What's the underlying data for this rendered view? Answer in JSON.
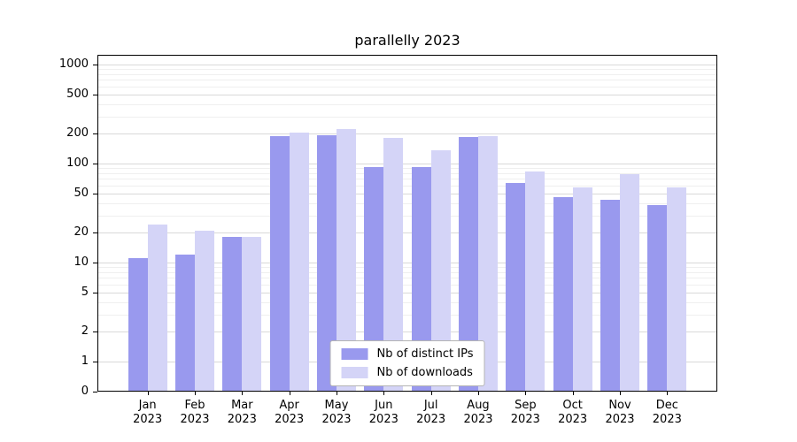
{
  "title": "parallelly 2023",
  "colors": {
    "ips": "#9999ee",
    "downloads": "#d4d4f7",
    "grid_major": "#d9d9d9",
    "grid_minor": "#efefef",
    "axis": "#000000",
    "background": "#ffffff"
  },
  "chart_data": {
    "type": "bar",
    "title": "parallelly 2023",
    "categories": [
      "Jan 2023",
      "Feb 2023",
      "Mar 2023",
      "Apr 2023",
      "May 2023",
      "Jun 2023",
      "Jul 2023",
      "Aug 2023",
      "Sep 2023",
      "Oct 2023",
      "Nov 2023",
      "Dec 2023"
    ],
    "series": [
      {
        "name": "Nb of distinct IPs",
        "color": "#9999ee",
        "values": [
          11,
          12,
          18,
          190,
          195,
          92,
          93,
          185,
          63,
          46,
          43,
          38
        ]
      },
      {
        "name": "Nb of downloads",
        "color": "#d4d4f7",
        "values": [
          24,
          21,
          18,
          205,
          225,
          180,
          135,
          190,
          83,
          57,
          78,
          58
        ]
      }
    ],
    "yscale": "symlog",
    "yticks": [
      0,
      1,
      2,
      5,
      10,
      20,
      50,
      100,
      200,
      500,
      1000
    ],
    "yminor": [
      3,
      4,
      6,
      7,
      8,
      9,
      30,
      40,
      60,
      70,
      80,
      90,
      300,
      400,
      600,
      700,
      800,
      900
    ],
    "ylim": [
      0,
      1250
    ],
    "xlabel": "",
    "ylabel": "",
    "grid": true,
    "legend_position": "lower center"
  }
}
